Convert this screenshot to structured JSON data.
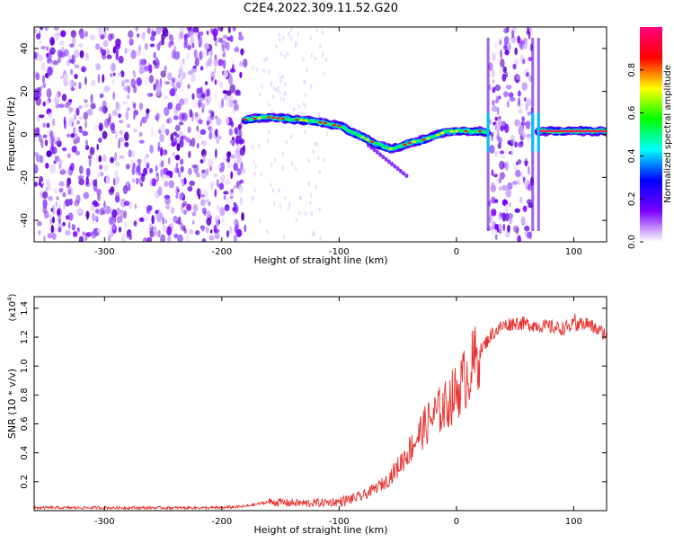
{
  "chart_data": [
    {
      "type": "heatmap",
      "title": "C2E4.2022.309.11.52.G20",
      "xlabel": "Height of straight line (km)",
      "ylabel": "Frequency (Hz)",
      "xlim": [
        -360,
        128
      ],
      "ylim": [
        -50,
        50
      ],
      "xticks": [
        -300,
        -200,
        -100,
        0,
        100
      ],
      "xtick_labels": [
        "-300",
        "-200",
        "-100",
        "0",
        "100"
      ],
      "yticks": [
        -40,
        -20,
        0,
        20,
        40
      ],
      "ytick_labels": [
        "-40",
        "-20",
        "0",
        "20",
        "40"
      ],
      "grid": false,
      "colorbar": {
        "label": "Normalized spectral amplitude",
        "range": [
          0,
          1
        ],
        "ticks": [
          0.0,
          0.2,
          0.4,
          0.6,
          0.8
        ],
        "tick_labels": [
          "0.0",
          "0.2",
          "0.4",
          "0.6",
          "0.8"
        ],
        "colors": [
          "#ffffff",
          "#7b00ff",
          "#0000ff",
          "#00ffff",
          "#00ff00",
          "#ffff00",
          "#ff0000",
          "#ff0080"
        ]
      },
      "ridge": {
        "x": [
          -180,
          -160,
          -140,
          -120,
          -100,
          -85,
          -70,
          -55,
          -40,
          -25,
          -10,
          0,
          10,
          20,
          27,
          70,
          90,
          110,
          128
        ],
        "y": [
          7,
          8,
          7,
          6,
          4,
          0,
          -4,
          -7,
          -4,
          -2,
          1,
          1.5,
          1.5,
          1.5,
          1,
          1.5,
          1.5,
          1.5,
          1.5
        ]
      },
      "noise_regions": [
        {
          "x_from": -360,
          "x_to": -180,
          "level": 0.3
        },
        {
          "x_from": 28,
          "x_to": 65,
          "level": 0.3
        }
      ],
      "spikes_x": [
        27,
        65,
        70
      ]
    },
    {
      "type": "line",
      "title": "",
      "xlabel": "Height of straight line (km)",
      "ylabel": "SNR (10 * v/v)",
      "scale_label": "(x10",
      "scale_exponent": "4",
      "scale_close": ")",
      "xlim": [
        -360,
        128
      ],
      "ylim": [
        0,
        1.48
      ],
      "xticks": [
        -300,
        -200,
        -100,
        0,
        100
      ],
      "xtick_labels": [
        "-300",
        "-200",
        "-100",
        "0",
        "100"
      ],
      "yticks": [
        0.2,
        0.4,
        0.6,
        0.8,
        1.0,
        1.2,
        1.4
      ],
      "ytick_labels": [
        "0.2",
        "0.4",
        "0.6",
        "0.8",
        "1.0",
        "1.2",
        "1.4"
      ],
      "grid": false,
      "color": "#e8322f",
      "series": [
        {
          "x": [
            -360,
            -300,
            -250,
            -200,
            -180,
            -160,
            -130,
            -100,
            -80,
            -60,
            -50,
            -40,
            -30,
            -20,
            -10,
            0,
            10,
            20,
            30,
            40,
            50,
            60,
            70,
            80,
            90,
            100,
            110,
            120,
            128
          ],
          "y": [
            0.02,
            0.02,
            0.02,
            0.02,
            0.03,
            0.06,
            0.05,
            0.06,
            0.1,
            0.2,
            0.3,
            0.42,
            0.55,
            0.65,
            0.72,
            0.82,
            0.95,
            1.1,
            1.22,
            1.28,
            1.3,
            1.29,
            1.28,
            1.27,
            1.26,
            1.28,
            1.3,
            1.25,
            1.22
          ]
        }
      ]
    }
  ]
}
